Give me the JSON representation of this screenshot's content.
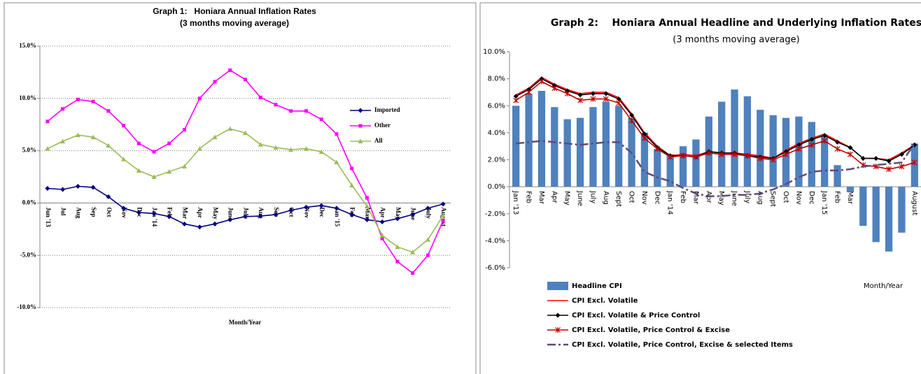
{
  "chart_data": [
    {
      "type": "line",
      "title": "Graph 1:   Honiara Annual Inflation Rates",
      "subtitle": "(3 months moving average)",
      "x_label": "Month/Year",
      "categories": [
        "Jun '13",
        "Jul",
        "Aug",
        "Sep",
        "Oct",
        "Nov",
        "Dec",
        "Jan '14",
        "Feb",
        "Mar",
        "Apr",
        "May",
        "June",
        "July",
        "Aug",
        "Sep",
        "Oct",
        "Nov",
        "Dec",
        "Jan '15",
        "Feb",
        "Mar",
        "Apr",
        "May",
        "June",
        "July",
        "August"
      ],
      "ylim": [
        -10,
        15
      ],
      "yticks": [
        {
          "value": -10,
          "label": "-10.0%"
        },
        {
          "value": -5,
          "label": "-5.0%"
        },
        {
          "value": 0,
          "label": "0.0%"
        },
        {
          "value": 5,
          "label": "5.0%"
        },
        {
          "value": 10,
          "label": "10.0%"
        },
        {
          "value": 15,
          "label": "15.0%"
        }
      ],
      "grid": true,
      "legend": "right",
      "series": [
        {
          "name": "Imported",
          "color": "#000080",
          "marker": "diamond",
          "values": [
            1.4,
            1.3,
            1.6,
            1.5,
            0.6,
            -0.5,
            -0.9,
            -1.0,
            -1.3,
            -2.0,
            -2.3,
            -2.0,
            -1.6,
            -1.3,
            -1.25,
            -1.1,
            -0.7,
            -0.4,
            -0.25,
            -0.5,
            -1.1,
            -1.6,
            -1.8,
            -1.5,
            -1.1,
            -0.5,
            -0.1
          ]
        },
        {
          "name": "Other",
          "color": "#ff00ff",
          "marker": "square",
          "values": [
            7.8,
            9.0,
            9.9,
            9.7,
            8.8,
            7.4,
            5.7,
            4.9,
            5.7,
            7.0,
            10.0,
            11.6,
            12.7,
            11.8,
            10.1,
            9.4,
            8.8,
            8.8,
            8.0,
            6.6,
            3.3,
            0.5,
            -3.4,
            -5.6,
            -6.7,
            -5.0,
            -1.7
          ]
        },
        {
          "name": "All",
          "color": "#9bbb59",
          "marker": "triangle",
          "values": [
            5.2,
            5.9,
            6.5,
            6.3,
            5.5,
            4.2,
            3.1,
            2.5,
            3.0,
            3.5,
            5.2,
            6.3,
            7.1,
            6.7,
            5.6,
            5.3,
            5.1,
            5.2,
            4.9,
            3.9,
            1.7,
            -0.3,
            -3.1,
            -4.2,
            -4.7,
            -3.5,
            -1.2
          ]
        }
      ]
    },
    {
      "type": "combo",
      "title": "Graph 2:    Honiara Annual Headline and Underlying Inflation Rates",
      "subtitle": "(3 months moving average)",
      "x_label": "Month/Year",
      "categories": [
        "Jan '13",
        "Feb",
        "Mar",
        "Apr",
        "May",
        "June",
        "July",
        "Aug",
        "Sept",
        "Oct",
        "Nov",
        "Dec",
        "Jan '14",
        "Feb",
        "Mar",
        "Apr",
        "May",
        "June",
        "July",
        "Aug",
        "Sept",
        "Oct",
        "Nov",
        "Dec",
        "Jan '15",
        "Feb",
        "Mar",
        "Apr",
        "May",
        "June",
        "July",
        "August"
      ],
      "ylim": [
        -6,
        10
      ],
      "yticks": [
        {
          "value": -6,
          "label": "-6.0%"
        },
        {
          "value": -4,
          "label": "-4.0%"
        },
        {
          "value": -2,
          "label": "-2.0%"
        },
        {
          "value": 0,
          "label": "0.0%"
        },
        {
          "value": 2,
          "label": "2.0%"
        },
        {
          "value": 4,
          "label": "4.0%"
        },
        {
          "value": 6,
          "label": "6.0%"
        },
        {
          "value": 8,
          "label": "8.0%"
        },
        {
          "value": 10,
          "label": "10.0%"
        }
      ],
      "grid": false,
      "legend": "bottom",
      "series": [
        {
          "name": "Headline CPI",
          "type": "bar",
          "color": "#4f81bd",
          "values": [
            6.0,
            6.9,
            7.1,
            5.9,
            5.0,
            5.1,
            5.9,
            6.3,
            6.0,
            5.1,
            4.0,
            2.8,
            2.4,
            3.0,
            3.5,
            5.2,
            6.3,
            7.2,
            6.7,
            5.7,
            5.3,
            5.1,
            5.2,
            4.8,
            3.7,
            1.6,
            -0.4,
            -2.9,
            -4.1,
            -4.8,
            -3.4,
            3.2
          ]
        },
        {
          "name": "CPI Excl. Volatile",
          "type": "line",
          "color": "#ff0000",
          "marker": "none",
          "values": [
            6.8,
            7.3,
            8.1,
            7.6,
            7.2,
            6.9,
            7.0,
            7.0,
            6.6,
            5.4,
            4.0,
            3.0,
            2.3,
            2.4,
            2.3,
            2.6,
            2.5,
            2.5,
            2.4,
            2.3,
            2.1,
            2.7,
            3.2,
            3.6,
            3.9,
            3.4,
            2.9,
            2.1,
            2.1,
            2.0,
            2.5,
            3.1
          ]
        },
        {
          "name": "CPI Excl. Volatile & Price Control",
          "type": "line",
          "color": "#000000",
          "marker": "diamond",
          "values": [
            6.7,
            7.2,
            8.0,
            7.5,
            7.1,
            6.8,
            6.9,
            6.9,
            6.5,
            5.3,
            3.9,
            2.9,
            2.3,
            2.3,
            2.2,
            2.6,
            2.5,
            2.5,
            2.3,
            2.2,
            2.1,
            2.6,
            3.1,
            3.5,
            3.8,
            3.3,
            2.9,
            2.1,
            2.1,
            1.9,
            2.4,
            3.1
          ]
        },
        {
          "name": "CPI Excl. Volatile, Price Control & Excise",
          "type": "line",
          "color": "#c00000",
          "marker": "star",
          "values": [
            6.4,
            7.0,
            7.8,
            7.3,
            6.9,
            6.4,
            6.5,
            6.5,
            6.2,
            4.9,
            3.6,
            2.8,
            2.2,
            2.3,
            2.2,
            2.5,
            2.4,
            2.4,
            2.3,
            2.1,
            2.0,
            2.4,
            2.8,
            3.1,
            3.4,
            2.8,
            2.4,
            1.6,
            1.5,
            1.3,
            1.5,
            1.8
          ]
        },
        {
          "name": "CPI Excl. Volatile, Price Control, Excise & selected Items",
          "type": "line",
          "color": "#604a7b",
          "marker": "none",
          "dash": true,
          "values": [
            3.2,
            3.3,
            3.4,
            3.3,
            3.2,
            3.1,
            3.2,
            3.3,
            3.3,
            2.5,
            1.1,
            0.7,
            0.4,
            -0.1,
            -0.5,
            -0.7,
            -0.7,
            -0.6,
            -0.6,
            -0.5,
            -0.2,
            0.2,
            0.7,
            1.1,
            1.2,
            1.2,
            1.3,
            1.5,
            1.6,
            1.7,
            1.8,
            3.2
          ]
        }
      ]
    }
  ]
}
